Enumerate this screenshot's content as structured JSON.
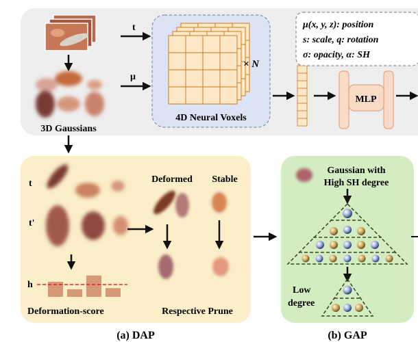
{
  "top": {
    "input_t": "t",
    "input_mu": "μ",
    "gaussians_label": "3D Gaussians",
    "voxels_label": "4D Neural Voxels",
    "times_n": "× N",
    "mlp_label": "MLP",
    "attributes": [
      "μ(x, y, z): position",
      "s: scale, q: rotation",
      "σ: opacity, α: SH"
    ]
  },
  "dap": {
    "row_t": "t",
    "row_t_prime": "t'",
    "deformed_label": "Deformed",
    "stable_label": "Stable",
    "threshold_label": "h",
    "score_label": "Deformation-score",
    "prune_label": "Respective Prune",
    "caption": "(a) DAP",
    "deformation_scores": [
      0.55,
      0.28,
      0.78,
      0.32
    ]
  },
  "gap": {
    "title_line1": "Gaussian with",
    "title_line2": "High SH degree",
    "low_line1": "Low",
    "low_line2": "degree",
    "caption": "(b) GAP"
  },
  "colors": {
    "top_panel_bg": "#eeeeee",
    "voxel_panel_bg": "#dbe3f5",
    "voxel_cell": "#fde8c8",
    "mlp_fill": "#f9dcc8",
    "dap_bg": "#fbeec8",
    "gap_bg": "#d4ecc2",
    "threshold": "#e02020",
    "bar_fill": "#c97c5d"
  }
}
